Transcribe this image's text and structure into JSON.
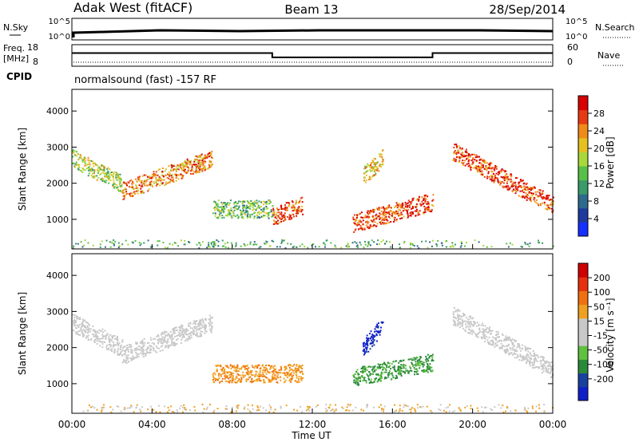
{
  "header": {
    "site": "Adak West (fitACF)",
    "beam": "Beam 13",
    "date": "28/Sep/2014"
  },
  "noise_panel": {
    "left_label": "N.Sky",
    "right_label": "N.Search",
    "left_ticks": [
      "10^5",
      "10^0"
    ],
    "right_ticks": [
      "10^5",
      "10^0"
    ]
  },
  "freq_panel": {
    "left_label_1": "Freq.",
    "left_label_2": "[MHz]",
    "right_label": "Nave",
    "left_ticks": [
      "18",
      "8"
    ],
    "right_ticks": [
      "60",
      "0"
    ],
    "freq_steps": [
      {
        "x_hours": 0,
        "value": 13
      },
      {
        "x_hours": 10,
        "value": 11
      },
      {
        "x_hours": 18,
        "value": 13
      },
      {
        "x_hours": 24,
        "value": 13
      }
    ]
  },
  "cpid": {
    "label": "CPID",
    "text": "normalsound (fast) -157 RF"
  },
  "chart_data": [
    {
      "type": "heatmap",
      "name": "power",
      "ylabel": "Slant Range [km]",
      "ylim": [
        180,
        4600
      ],
      "yticks": [
        "1000",
        "2000",
        "3000",
        "4000"
      ],
      "colorbar_label": "Power [dB]",
      "colorbar_ticks": [
        "4",
        "8",
        "12",
        "16",
        "20",
        "24",
        "28"
      ],
      "colorbar_colors": [
        "#1530ff",
        "#1e3a9e",
        "#2e6a8c",
        "#3a9a6a",
        "#57c048",
        "#a8d83a",
        "#e6c020",
        "#f08a18",
        "#e83a12",
        "#d80000"
      ],
      "blobs": [
        {
          "x": [
            0,
            2.5
          ],
          "y": [
            2700,
            2000
          ],
          "level": 5
        },
        {
          "x": [
            2.5,
            7
          ],
          "y": [
            1800,
            2700
          ],
          "level": 7
        },
        {
          "x": [
            7,
            10
          ],
          "y": [
            1300,
            1300
          ],
          "level": 4
        },
        {
          "x": [
            10,
            11.5
          ],
          "y": [
            1100,
            1400
          ],
          "level": 8
        },
        {
          "x": [
            14,
            18
          ],
          "y": [
            900,
            1500
          ],
          "level": 8
        },
        {
          "x": [
            14.5,
            15.5
          ],
          "y": [
            2200,
            2700
          ],
          "level": 6
        },
        {
          "x": [
            19,
            24
          ],
          "y": [
            2900,
            1400
          ],
          "level": 8
        }
      ]
    },
    {
      "type": "heatmap",
      "name": "velocity",
      "ylabel": "Slant Range [km]",
      "ylim": [
        180,
        4600
      ],
      "yticks": [
        "1000",
        "2000",
        "3000",
        "4000"
      ],
      "colorbar_label": "Velocity [m s⁻¹]",
      "colorbar_ticks": [
        "200",
        "100",
        "50",
        "15",
        "-15",
        "-50",
        "-100",
        "-200"
      ],
      "colorbar_colors": [
        "#1020c8",
        "#1a40a0",
        "#2a8a3a",
        "#60c040",
        "#c8c8c8",
        "#c8c8c8",
        "#f0a020",
        "#f07010",
        "#e83010",
        "#d00000"
      ],
      "blobs": [
        {
          "x": [
            0,
            2.5
          ],
          "y": [
            2700,
            2000
          ],
          "level": "grey"
        },
        {
          "x": [
            2.5,
            7
          ],
          "y": [
            1800,
            2700
          ],
          "level": "grey"
        },
        {
          "x": [
            7,
            11.5
          ],
          "y": [
            1300,
            1300
          ],
          "level": "orange"
        },
        {
          "x": [
            14,
            18
          ],
          "y": [
            1200,
            1600
          ],
          "level": "green"
        },
        {
          "x": [
            14.5,
            15.5
          ],
          "y": [
            2000,
            2600
          ],
          "level": "blue"
        },
        {
          "x": [
            19,
            24
          ],
          "y": [
            2900,
            1400
          ],
          "level": "grey"
        }
      ]
    }
  ],
  "xaxis": {
    "ticks": [
      "00:00",
      "04:00",
      "08:00",
      "12:00",
      "16:00",
      "20:00",
      "00:00"
    ],
    "label": "Time UT"
  }
}
